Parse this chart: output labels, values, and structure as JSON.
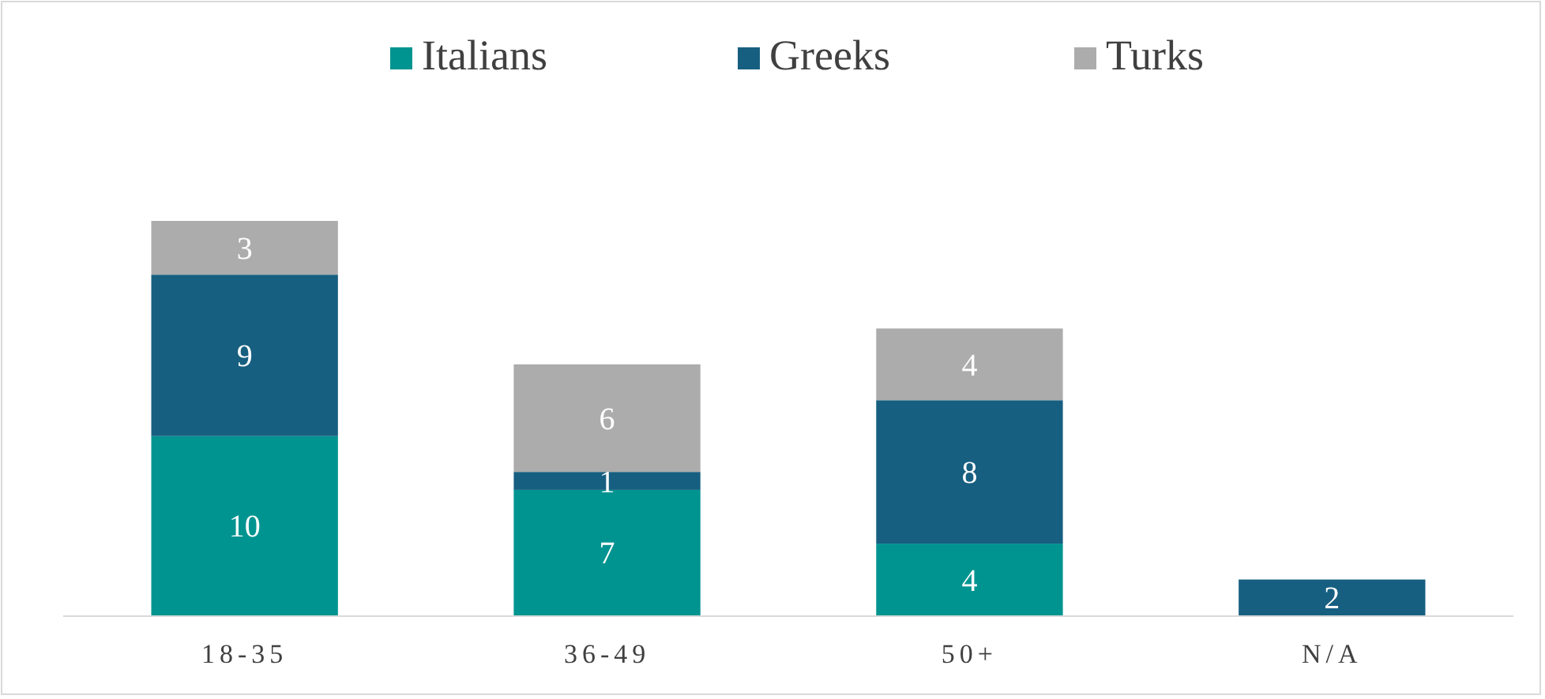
{
  "chart_data": {
    "type": "bar",
    "stacked": true,
    "data_labels": true,
    "legend": "top",
    "categories": [
      "18-35",
      "36-49",
      "50+",
      "N/A"
    ],
    "series": [
      {
        "name": "Italians",
        "color": "#009490",
        "values": [
          10,
          7,
          4,
          null
        ]
      },
      {
        "name": "Greeks",
        "color": "#175f80",
        "values": [
          9,
          1,
          8,
          2
        ]
      },
      {
        "name": "Turks",
        "color": "#acacac",
        "values": [
          3,
          6,
          4,
          null
        ]
      }
    ]
  }
}
